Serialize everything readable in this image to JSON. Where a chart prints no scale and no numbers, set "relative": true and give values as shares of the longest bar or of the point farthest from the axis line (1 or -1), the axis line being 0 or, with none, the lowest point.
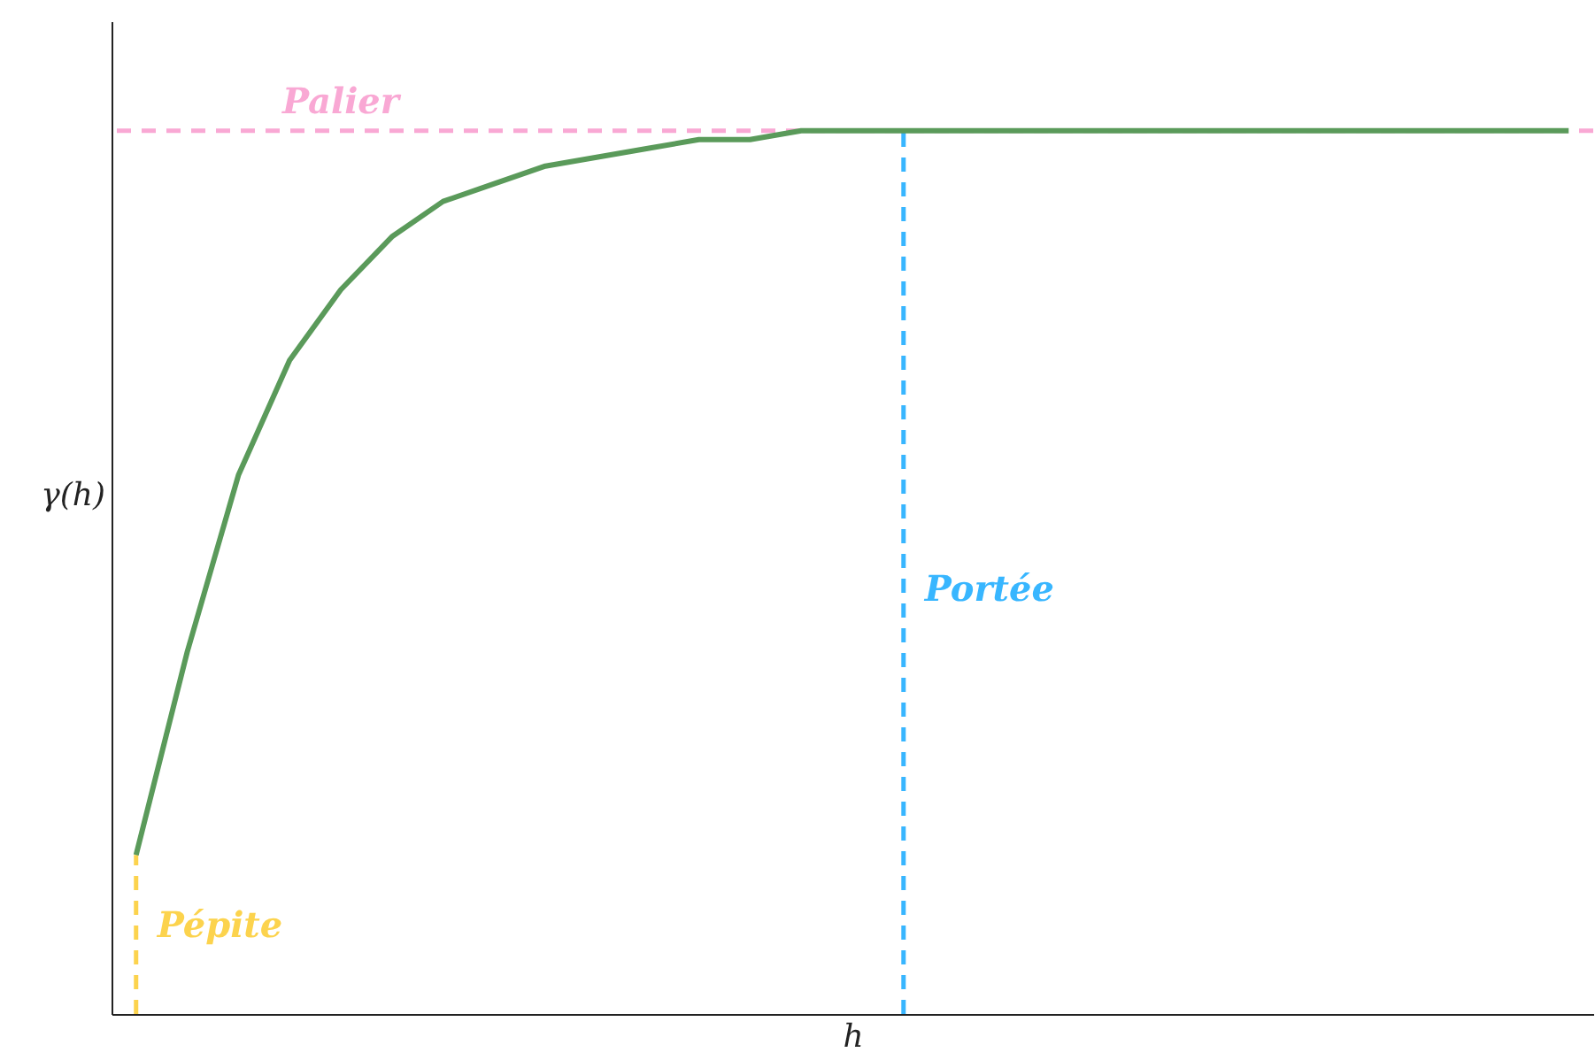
{
  "chart_data": {
    "type": "line",
    "relative": true,
    "xlabel": "h",
    "ylabel": "γ(h)",
    "categories": [
      null,
      null,
      null,
      null,
      null,
      null,
      null,
      null,
      null,
      null,
      null,
      null,
      null,
      null,
      null,
      null,
      null,
      null,
      null,
      null,
      null,
      null,
      null,
      null,
      null,
      null,
      null,
      null,
      null
    ],
    "series": [
      {
        "color": "#5a9a5a",
        "values": [
          0.18,
          0.41,
          0.61,
          0.74,
          0.82,
          0.88,
          0.92,
          0.94,
          0.96,
          0.97,
          0.98,
          0.99,
          0.99,
          1,
          1,
          1,
          1,
          1,
          1,
          1,
          1,
          1,
          1,
          1,
          1,
          1,
          1,
          1,
          1
        ]
      }
    ],
    "ref_lines": [
      {
        "axis": "y",
        "value": 1,
        "label": "Palier",
        "color": "#f9a8d4",
        "line_style": "dashed"
      }
    ],
    "annotations": [
      "Portée",
      "Pépite"
    ],
    "grid": false,
    "marker": "none",
    "line_style": "solid"
  }
}
